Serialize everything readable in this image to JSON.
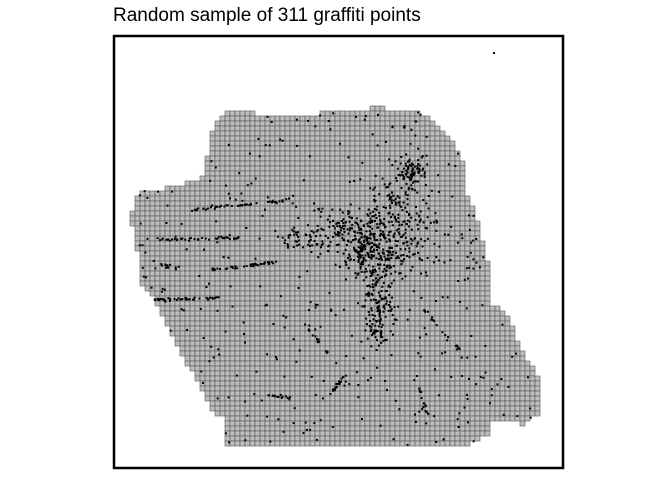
{
  "title": "Random sample of 311 graffiti points",
  "map": {
    "grid_fill": "#bebebe",
    "grid_stroke": "#555555",
    "point_color": "#000000",
    "frame_color": "#000000",
    "background": "#ffffff"
  }
}
